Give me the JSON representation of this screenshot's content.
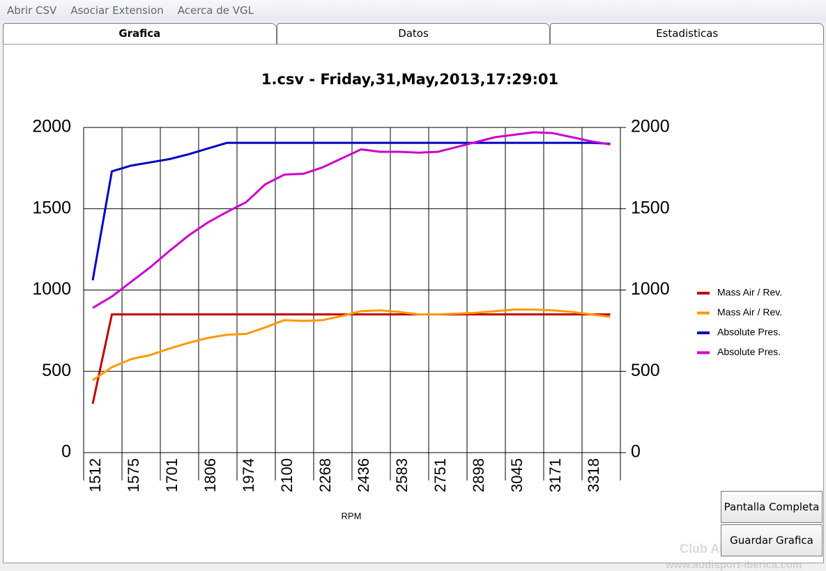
{
  "menu": {
    "items": [
      "Abrir CSV",
      "Asociar Extension",
      "Acerca de VGL"
    ]
  },
  "tabs": {
    "items": [
      "Grafica",
      "Datos",
      "Estadisticas"
    ],
    "active": 0
  },
  "chart_data": {
    "type": "line",
    "title": "1.csv - Friday,31,May,2013,17:29:01",
    "x_label": "RPM",
    "categories": [
      "1512",
      null,
      "1575",
      null,
      "1701",
      null,
      "1806",
      null,
      "1974",
      null,
      "2100",
      null,
      "2268",
      null,
      "2436",
      null,
      "2583",
      null,
      "2751",
      null,
      "2898",
      null,
      "3045",
      null,
      "3171",
      null,
      "3318",
      null
    ],
    "ylim": [
      0,
      2000
    ],
    "yticks": [
      0,
      500,
      1000,
      1500,
      2000
    ],
    "y2lim": [
      0,
      2000
    ],
    "y2ticks": [
      0,
      500,
      1000,
      1500,
      2000
    ],
    "grid": true,
    "legend": "right",
    "series": [
      {
        "name": "Mass Air / Rev.",
        "color": "#c00000",
        "values": [
          300,
          850,
          850,
          850,
          850,
          850,
          850,
          850,
          850,
          850,
          850,
          850,
          850,
          850,
          850,
          850,
          850,
          850,
          850,
          850,
          850,
          850,
          850,
          850,
          850,
          850,
          850,
          850
        ]
      },
      {
        "name": "Mass Air / Rev.",
        "color": "#ff9900",
        "values": [
          445,
          525,
          575,
          600,
          640,
          675,
          705,
          725,
          730,
          770,
          815,
          810,
          815,
          840,
          870,
          875,
          865,
          850,
          850,
          855,
          860,
          870,
          880,
          880,
          875,
          865,
          850,
          835
        ]
      },
      {
        "name": "Absolute Pres.",
        "color": "#0000c0",
        "values": [
          1060,
          1730,
          1765,
          1785,
          1805,
          1835,
          1870,
          1905,
          1905,
          1905,
          1905,
          1905,
          1905,
          1905,
          1905,
          1905,
          1905,
          1905,
          1905,
          1905,
          1905,
          1905,
          1905,
          1905,
          1905,
          1905,
          1905,
          1900
        ]
      },
      {
        "name": "Absolute Pres.",
        "color": "#cc00cc",
        "values": [
          890,
          960,
          1050,
          1140,
          1240,
          1335,
          1415,
          1480,
          1540,
          1650,
          1710,
          1715,
          1755,
          1810,
          1865,
          1850,
          1850,
          1845,
          1850,
          1880,
          1910,
          1940,
          1955,
          1970,
          1965,
          1940,
          1915,
          1895
        ]
      }
    ]
  },
  "buttons": [
    "Pantalla Completa",
    "Guardar Grafica"
  ],
  "watermark": {
    "title": "Club Audisport Iberica",
    "url": "www.audisport-iberica.com"
  }
}
